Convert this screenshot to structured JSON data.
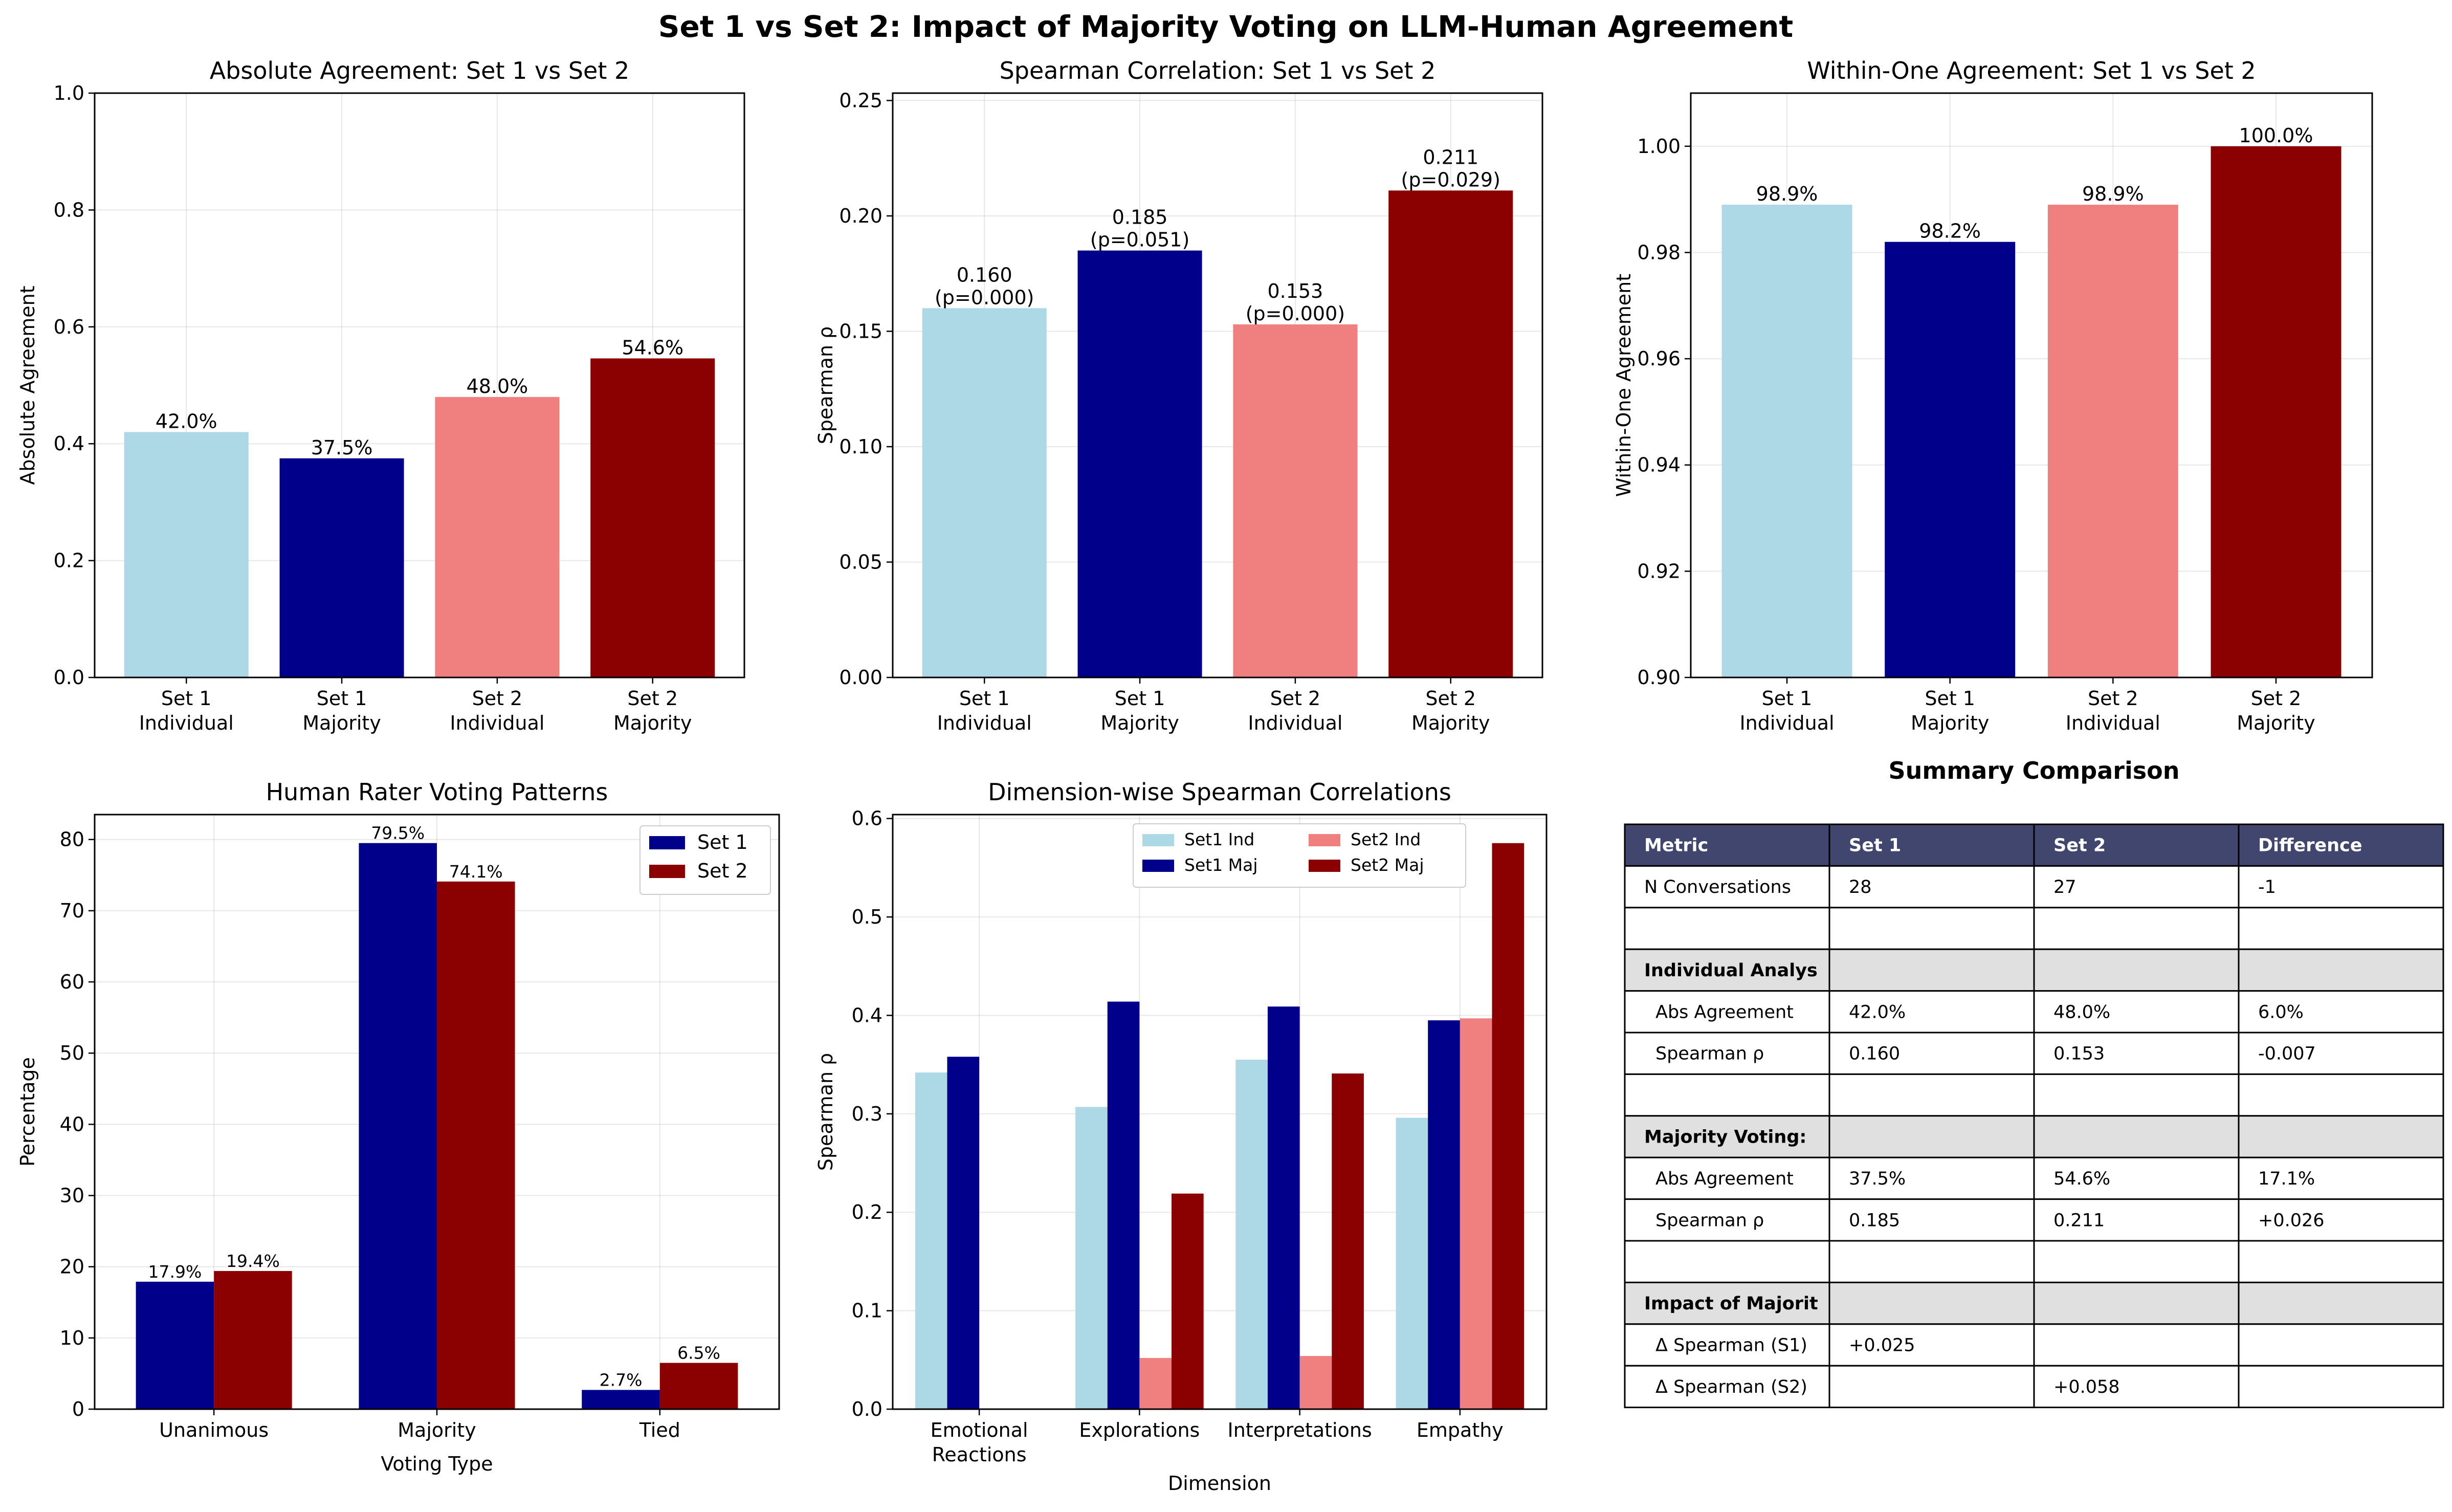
{
  "figure_title": "Set 1 vs Set 2: Impact of Majority Voting on LLM-Human Agreement",
  "colors": {
    "set1_individual": "#add8e6",
    "set1_majority": "#00008b",
    "set2_individual": "#f08080",
    "set2_majority": "#8b0000",
    "table_header_bg": "#40466e",
    "table_section_bg": "#e0e0e0"
  },
  "chart_data": [
    {
      "type": "bar",
      "title": "Absolute Agreement: Set 1 vs Set 2",
      "xlabel": "",
      "ylabel": "Absolute Agreement",
      "categories": [
        "Set 1\nIndividual",
        "Set 1\nMajority",
        "Set 2\nIndividual",
        "Set 2\nMajority"
      ],
      "values": [
        0.42,
        0.375,
        0.48,
        0.546
      ],
      "bar_labels": [
        "42.0%",
        "37.5%",
        "48.0%",
        "54.6%"
      ],
      "colors": [
        "#add8e6",
        "#00008b",
        "#f08080",
        "#8b0000"
      ],
      "ylim": [
        0,
        1.0
      ],
      "yticks": [
        0.0,
        0.2,
        0.4,
        0.6,
        0.8,
        1.0
      ],
      "ytick_labels": [
        "0.0",
        "0.2",
        "0.4",
        "0.6",
        "0.8",
        "1.0"
      ],
      "grid": true
    },
    {
      "type": "bar",
      "title": "Spearman Correlation: Set 1 vs Set 2",
      "xlabel": "",
      "ylabel": "Spearman ρ",
      "categories": [
        "Set 1\nIndividual",
        "Set 1\nMajority",
        "Set 2\nIndividual",
        "Set 2\nMajority"
      ],
      "values": [
        0.16,
        0.185,
        0.153,
        0.211
      ],
      "bar_labels": [
        "0.160\n(p=0.000)",
        "0.185\n(p=0.051)",
        "0.153\n(p=0.000)",
        "0.211\n(p=0.029)"
      ],
      "colors": [
        "#add8e6",
        "#00008b",
        "#f08080",
        "#8b0000"
      ],
      "ylim": [
        0,
        0.2532
      ],
      "yticks": [
        0.0,
        0.05,
        0.1,
        0.15,
        0.2,
        0.25
      ],
      "ytick_labels": [
        "0.00",
        "0.05",
        "0.10",
        "0.15",
        "0.20",
        "0.25"
      ],
      "grid": true
    },
    {
      "type": "bar",
      "title": "Within-One Agreement: Set 1 vs Set 2",
      "xlabel": "",
      "ylabel": "Within-One Agreement",
      "categories": [
        "Set 1\nIndividual",
        "Set 1\nMajority",
        "Set 2\nIndividual",
        "Set 2\nMajority"
      ],
      "values": [
        0.989,
        0.982,
        0.989,
        1.0
      ],
      "bar_labels": [
        "98.9%",
        "98.2%",
        "98.9%",
        "100.0%"
      ],
      "colors": [
        "#add8e6",
        "#00008b",
        "#f08080",
        "#8b0000"
      ],
      "ylim": [
        0.9,
        1.01
      ],
      "yticks": [
        0.9,
        0.92,
        0.94,
        0.96,
        0.98,
        1.0
      ],
      "ytick_labels": [
        "0.90",
        "0.92",
        "0.94",
        "0.96",
        "0.98",
        "1.00"
      ],
      "grid": true
    },
    {
      "type": "bar",
      "title": "Human Rater Voting Patterns",
      "xlabel": "Voting Type",
      "ylabel": "Percentage",
      "categories": [
        "Unanimous",
        "Majority",
        "Tied"
      ],
      "series": [
        {
          "name": "Set 1",
          "values": [
            17.9,
            79.5,
            2.7
          ],
          "labels": [
            "17.9%",
            "79.5%",
            "2.7%"
          ],
          "color": "#00008b"
        },
        {
          "name": "Set 2",
          "values": [
            19.4,
            74.1,
            6.5
          ],
          "labels": [
            "19.4%",
            "74.1%",
            "6.5%"
          ],
          "color": "#8b0000"
        }
      ],
      "ylim": [
        0,
        83.5
      ],
      "yticks": [
        0,
        10,
        20,
        30,
        40,
        50,
        60,
        70,
        80
      ],
      "ytick_labels": [
        "0",
        "10",
        "20",
        "30",
        "40",
        "50",
        "60",
        "70",
        "80"
      ],
      "legend": "top-right",
      "grid": true
    },
    {
      "type": "bar",
      "title": "Dimension-wise Spearman Correlations",
      "xlabel": "Dimension",
      "ylabel": "Spearman ρ",
      "categories": [
        "Emotional\nReactions",
        "Explorations",
        "Interpretations",
        "Empathy"
      ],
      "series": [
        {
          "name": "Set1 Ind",
          "values": [
            0.342,
            0.307,
            0.355,
            0.296
          ],
          "color": "#add8e6"
        },
        {
          "name": "Set1 Maj",
          "values": [
            0.358,
            0.414,
            0.409,
            0.395
          ],
          "color": "#00008b"
        },
        {
          "name": "Set2 Ind",
          "values": [
            0,
            0.052,
            0.054,
            0.397
          ],
          "color": "#f08080"
        },
        {
          "name": "Set2 Maj",
          "values": [
            0,
            0.219,
            0.341,
            0.575
          ],
          "color": "#8b0000"
        }
      ],
      "ylim": [
        0,
        0.604
      ],
      "yticks": [
        0.0,
        0.1,
        0.2,
        0.3,
        0.4,
        0.5,
        0.6
      ],
      "ytick_labels": [
        "0.0",
        "0.1",
        "0.2",
        "0.3",
        "0.4",
        "0.5",
        "0.6"
      ],
      "legend": "top-center",
      "grid": true
    },
    {
      "type": "table",
      "title": "Summary Comparison",
      "columns": [
        "Metric",
        "Set 1",
        "Set 2",
        "Difference"
      ],
      "rows": [
        {
          "kind": "data",
          "cells": [
            "N Conversations",
            "28",
            "27",
            "-1"
          ]
        },
        {
          "kind": "blank",
          "cells": [
            "",
            "",
            "",
            ""
          ]
        },
        {
          "kind": "section",
          "cells": [
            "Individual Analys",
            "",
            "",
            ""
          ]
        },
        {
          "kind": "data",
          "cells": [
            "  Abs Agreement",
            "42.0%",
            "48.0%",
            "6.0%"
          ]
        },
        {
          "kind": "data",
          "cells": [
            "  Spearman ρ",
            "0.160",
            "0.153",
            "-0.007"
          ]
        },
        {
          "kind": "blank",
          "cells": [
            "",
            "",
            "",
            ""
          ]
        },
        {
          "kind": "section",
          "cells": [
            "Majority Voting:",
            "",
            "",
            ""
          ]
        },
        {
          "kind": "data",
          "cells": [
            "  Abs Agreement",
            "37.5%",
            "54.6%",
            "17.1%"
          ]
        },
        {
          "kind": "data",
          "cells": [
            "  Spearman ρ",
            "0.185",
            "0.211",
            "+0.026"
          ]
        },
        {
          "kind": "blank",
          "cells": [
            "",
            "",
            "",
            ""
          ]
        },
        {
          "kind": "section",
          "cells": [
            "Impact of Majorit",
            "",
            "",
            ""
          ]
        },
        {
          "kind": "data",
          "cells": [
            "  Δ Spearman (S1)",
            "+0.025",
            "",
            ""
          ]
        },
        {
          "kind": "data",
          "cells": [
            "  Δ Spearman (S2)",
            "",
            "+0.058",
            ""
          ]
        }
      ]
    }
  ]
}
